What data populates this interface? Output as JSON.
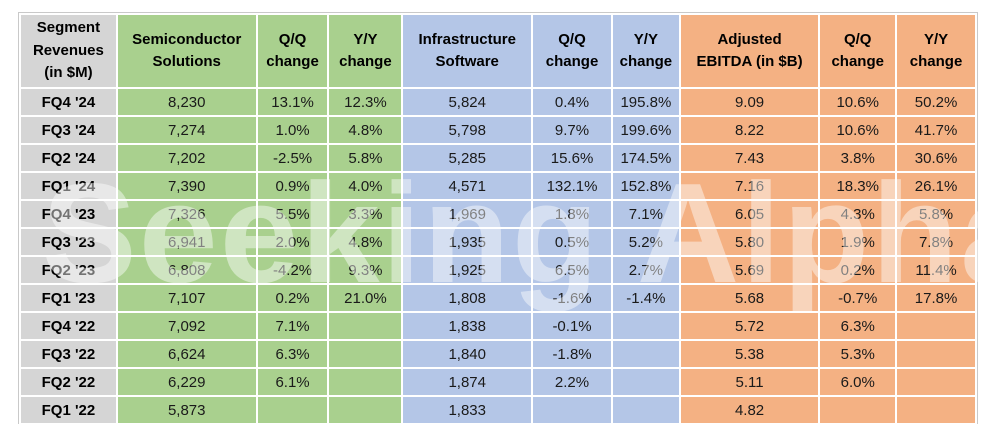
{
  "watermark": "Seeking Alpha",
  "colors": {
    "gray": "#d5d5d5",
    "green": "#a9d08e",
    "blue": "#b4c6e7",
    "orange": "#f4b183"
  },
  "chart_data": {
    "type": "table",
    "columns": [
      "Segment\nRevenues\n(in $M)",
      "Semiconductor\nSolutions",
      "Q/Q\nchange",
      "Y/Y\nchange",
      "Infrastructure\nSoftware",
      "Q/Q\nchange",
      "Y/Y\nchange",
      "Adjusted\nEBITDA (in $B)",
      "Q/Q\nchange",
      "Y/Y\nchange"
    ],
    "rows": [
      [
        "FQ4 '24",
        "8,230",
        "13.1%",
        "12.3%",
        "5,824",
        "0.4%",
        "195.8%",
        "9.09",
        "10.6%",
        "50.2%"
      ],
      [
        "FQ3 '24",
        "7,274",
        "1.0%",
        "4.8%",
        "5,798",
        "9.7%",
        "199.6%",
        "8.22",
        "10.6%",
        "41.7%"
      ],
      [
        "FQ2 '24",
        "7,202",
        "-2.5%",
        "5.8%",
        "5,285",
        "15.6%",
        "174.5%",
        "7.43",
        "3.8%",
        "30.6%"
      ],
      [
        "FQ1 '24",
        "7,390",
        "0.9%",
        "4.0%",
        "4,571",
        "132.1%",
        "152.8%",
        "7.16",
        "18.3%",
        "26.1%"
      ],
      [
        "FQ4 '23",
        "7,326",
        "5.5%",
        "3.3%",
        "1,969",
        "1.8%",
        "7.1%",
        "6.05",
        "4.3%",
        "5.8%"
      ],
      [
        "FQ3 '23",
        "6,941",
        "2.0%",
        "4.8%",
        "1,935",
        "0.5%",
        "5.2%",
        "5.80",
        "1.9%",
        "7.8%"
      ],
      [
        "FQ2 '23",
        "6,808",
        "-4.2%",
        "9.3%",
        "1,925",
        "6.5%",
        "2.7%",
        "5.69",
        "0.2%",
        "11.4%"
      ],
      [
        "FQ1 '23",
        "7,107",
        "0.2%",
        "21.0%",
        "1,808",
        "-1.6%",
        "-1.4%",
        "5.68",
        "-0.7%",
        "17.8%"
      ],
      [
        "FQ4 '22",
        "7,092",
        "7.1%",
        "",
        "1,838",
        "-0.1%",
        "",
        "5.72",
        "6.3%",
        ""
      ],
      [
        "FQ3 '22",
        "6,624",
        "6.3%",
        "",
        "1,840",
        "-1.8%",
        "",
        "5.38",
        "5.3%",
        ""
      ],
      [
        "FQ2 '22",
        "6,229",
        "6.1%",
        "",
        "1,874",
        "2.2%",
        "",
        "5.11",
        "6.0%",
        ""
      ],
      [
        "FQ1 '22",
        "5,873",
        "",
        "",
        "1,833",
        "",
        "",
        "4.82",
        "",
        ""
      ]
    ]
  }
}
